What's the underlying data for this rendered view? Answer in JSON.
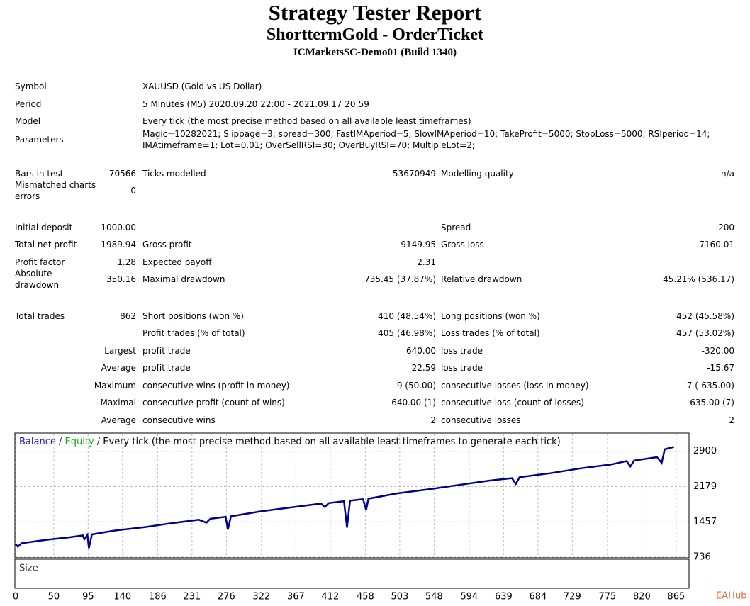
{
  "header": {
    "title": "Strategy Tester Report",
    "subtitle": "ShorttermGold - OrderTicket",
    "server": "ICMarketsSC-Demo01 (Build 1340)"
  },
  "report": {
    "rows": [
      [
        "Symbol",
        "XAUUSD (Gold vs US Dollar)",
        null,
        null,
        null,
        null
      ],
      [
        "Period",
        "5 Minutes (M5) 2020.09.20 22:00 - 2021.09.17 20:59",
        null,
        null,
        null,
        null
      ],
      [
        "Model",
        "Every tick (the most precise method based on all available least timeframes)",
        null,
        null,
        null,
        null
      ],
      [
        "Parameters",
        "Magic=10282021; Slippage=3; spread=300; FastIMAperiod=5; SlowIMAperiod=10; TakeProfit=5000; StopLoss=5000; RSIperiod=14; IMAtimeframe=1; Lot=0.01; OverSellRSI=30; OverBuyRSI=70; MultipleLot=2;",
        null,
        null,
        null,
        null
      ],
      [
        "Bars in test",
        "70566",
        "Ticks modelled",
        "53670949",
        "Modelling quality",
        "n/a"
      ],
      [
        "Mismatched charts errors",
        "0",
        null,
        null,
        null,
        null
      ],
      [
        "Initial deposit",
        "1000.00",
        null,
        null,
        "Spread",
        "200"
      ],
      [
        "Total net profit",
        "1989.94",
        "Gross profit",
        "9149.95",
        "Gross loss",
        "-7160.01"
      ],
      [
        "Profit factor",
        "1.28",
        "Expected payoff",
        "2.31",
        null,
        null
      ],
      [
        "Absolute drawdown",
        "350.16",
        "Maximal drawdown",
        "735.45 (37.87%)",
        "Relative drawdown",
        "45.21% (536.17)"
      ],
      [
        "Total trades",
        "862",
        "Short positions (won %)",
        "410 (48.54%)",
        "Long positions (won %)",
        "452 (45.58%)"
      ],
      [
        null,
        null,
        "Profit trades (% of total)",
        "405 (46.98%)",
        "Loss trades (% of total)",
        "457 (53.02%)"
      ],
      [
        "Largest",
        null,
        "profit trade",
        "640.00",
        "loss trade",
        "-320.00"
      ],
      [
        "Average",
        null,
        "profit trade",
        "22.59",
        "loss trade",
        "-15.67"
      ],
      [
        "Maximum",
        null,
        "consecutive wins (profit in money)",
        "9 (50.00)",
        "consecutive losses (loss in money)",
        "7 (-635.00)"
      ],
      [
        "Maximal",
        null,
        "consecutive profit (count of wins)",
        "640.00 (1)",
        "consecutive loss (count of losses)",
        "-635.00 (7)"
      ],
      [
        "Average",
        null,
        "consecutive wins",
        "2",
        "consecutive losses",
        "2"
      ]
    ]
  },
  "chart_data": {
    "type": "line",
    "legend": [
      "Balance",
      "Equity",
      "Every tick (the most precise method based on all available least timeframes to generate each tick)"
    ],
    "size_label": "Size",
    "watermark": "EAHub",
    "xlim": [
      0,
      880
    ],
    "ylim": [
      736,
      3258
    ],
    "xticks": [
      0,
      50,
      95,
      140,
      186,
      231,
      276,
      322,
      367,
      412,
      458,
      503,
      548,
      594,
      639,
      684,
      729,
      775,
      820,
      865
    ],
    "yticks": [
      736,
      1457,
      2179,
      2900
    ],
    "grid": true,
    "series": [
      {
        "name": "Balance",
        "color": "#00008b",
        "x": [
          0,
          3,
          8,
          40,
          70,
          88,
          90,
          94,
          96,
          100,
          130,
          170,
          200,
          240,
          250,
          255,
          275,
          278,
          282,
          320,
          360,
          400,
          405,
          410,
          430,
          434,
          438,
          455,
          459,
          462,
          500,
          540,
          580,
          620,
          650,
          655,
          660,
          700,
          740,
          780,
          800,
          805,
          810,
          840,
          846,
          850,
          862
        ],
        "values": [
          1000,
          950,
          1020,
          1090,
          1140,
          1180,
          1100,
          1190,
          920,
          1200,
          1280,
          1350,
          1420,
          1500,
          1440,
          1520,
          1560,
          1300,
          1570,
          1670,
          1750,
          1830,
          1760,
          1840,
          1880,
          1340,
          1890,
          1920,
          1700,
          1930,
          2040,
          2120,
          2210,
          2300,
          2350,
          2230,
          2370,
          2450,
          2550,
          2630,
          2700,
          2590,
          2710,
          2780,
          2660,
          2940,
          2990
        ]
      }
    ]
  }
}
